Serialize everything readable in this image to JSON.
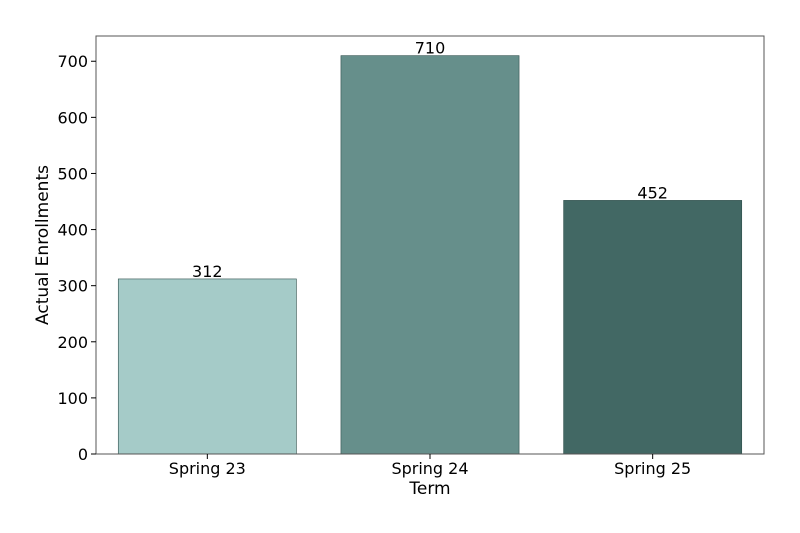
{
  "chart_data": {
    "type": "bar",
    "categories": [
      "Spring 23",
      "Spring 24",
      "Spring 25"
    ],
    "values": [
      312,
      710,
      452
    ],
    "data_labels": [
      "312",
      "710",
      "452"
    ],
    "bar_colors": [
      "#a5cbc8",
      "#668f8b",
      "#426864"
    ],
    "xlabel": "Term",
    "ylabel": "Actual Enrollments",
    "ylim": [
      0,
      745
    ],
    "yticks": [
      0,
      100,
      200,
      300,
      400,
      500,
      600,
      700
    ],
    "ytick_labels": [
      "0",
      "100",
      "200",
      "300",
      "400",
      "500",
      "600",
      "700"
    ],
    "grid": false,
    "legend": "none"
  }
}
